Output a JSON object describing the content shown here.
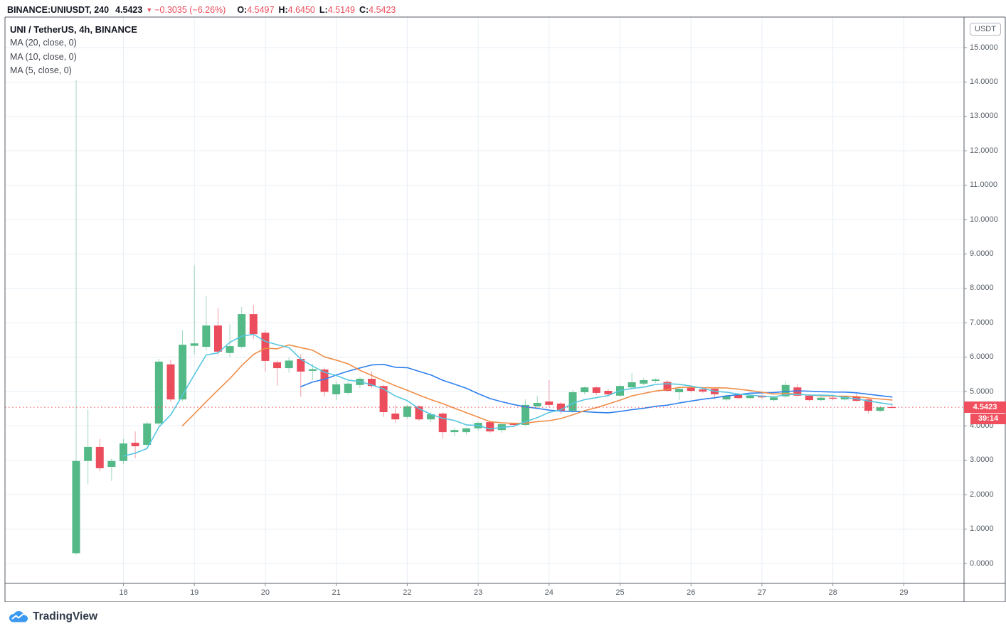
{
  "header": {
    "symbol_title": "BINANCE:UNIUSDT, 240",
    "last_price": "4.5423",
    "direction_icon": "▼",
    "change": "−0.3035 (−6.26%)",
    "ohlc": [
      {
        "label": "O:",
        "value": "4.5497"
      },
      {
        "label": "H:",
        "value": "4.6450"
      },
      {
        "label": "L:",
        "value": "4.5149"
      },
      {
        "label": "C:",
        "value": "4.5423"
      }
    ]
  },
  "legend": {
    "title": "UNI / TetherUS, 4h, BINANCE",
    "indicators": [
      "MA (20, close, 0)",
      "MA (10, close, 0)",
      "MA (5, close, 0)"
    ]
  },
  "price_axis": {
    "unit_label": "USDT",
    "tick_labels": [
      "0.0000",
      "1.0000",
      "2.0000",
      "3.0000",
      "4.0000",
      "5.0000",
      "6.0000",
      "7.0000",
      "8.0000",
      "9.0000",
      "10.0000",
      "11.0000",
      "12.0000",
      "13.0000",
      "14.0000",
      "15.0000"
    ],
    "last_price_label": "4.5423",
    "countdown": "39:14"
  },
  "time_axis": {
    "labels": [
      "18",
      "19",
      "20",
      "21",
      "22",
      "23",
      "24",
      "25",
      "26",
      "27",
      "28",
      "29"
    ]
  },
  "footer": {
    "brand": "TradingView"
  },
  "colors": {
    "up": "#53b987",
    "down": "#eb4d5c",
    "up_wick": "rgba(83,185,135,0.55)",
    "down_wick": "rgba(235,77,92,0.55)",
    "ma20": "#2f80ed",
    "ma10": "#ef8d47",
    "ma5": "#55c6e0",
    "accent_red": "#f04f5e",
    "grid": "#e7eef5",
    "frame": "#565b63"
  },
  "chart_data": {
    "type": "candlestick",
    "title": "UNI / TetherUS, 4h, BINANCE",
    "symbol": "BINANCE:UNIUSDT",
    "interval": "4h",
    "x_axis": {
      "tick_labels": [
        "18",
        "19",
        "20",
        "21",
        "22",
        "23",
        "24",
        "25",
        "26",
        "27",
        "28",
        "29"
      ]
    },
    "y_axis": {
      "min": 0,
      "max": 15,
      "tick_step": 1,
      "tick_labels": [
        "0.0000",
        "1.0000",
        "2.0000",
        "3.0000",
        "4.0000",
        "5.0000",
        "6.0000",
        "7.0000",
        "8.0000",
        "9.0000",
        "10.0000",
        "11.0000",
        "12.0000",
        "13.0000",
        "14.0000",
        "15.0000"
      ]
    },
    "last_price": 4.5423,
    "countdown": "39:14",
    "first_day_label_candle_index": 4,
    "candles_per_day": 6,
    "moving_averages": [
      {
        "label": "MA (20, close, 0)",
        "period": 20,
        "color_key": "ma20"
      },
      {
        "label": "MA (10, close, 0)",
        "period": 10,
        "color_key": "ma10"
      },
      {
        "label": "MA (5, close, 0)",
        "period": 5,
        "color_key": "ma5"
      }
    ],
    "candles": [
      [
        0.3,
        14.05,
        0.25,
        2.98
      ],
      [
        2.98,
        4.48,
        2.31,
        3.39
      ],
      [
        3.39,
        3.62,
        2.68,
        2.77
      ],
      [
        2.81,
        3.05,
        2.4,
        2.98
      ],
      [
        2.98,
        3.62,
        2.9,
        3.49
      ],
      [
        3.51,
        3.84,
        3.06,
        3.41
      ],
      [
        3.45,
        4.12,
        3.35,
        4.07
      ],
      [
        4.07,
        5.95,
        4.0,
        5.87
      ],
      [
        5.79,
        5.92,
        4.7,
        4.77
      ],
      [
        4.77,
        6.78,
        4.72,
        6.36
      ],
      [
        6.33,
        8.67,
        6.08,
        6.4
      ],
      [
        6.3,
        7.77,
        6.2,
        6.92
      ],
      [
        6.92,
        7.44,
        6.05,
        6.16
      ],
      [
        6.12,
        6.95,
        6.0,
        6.32
      ],
      [
        6.3,
        7.46,
        6.25,
        7.25
      ],
      [
        7.25,
        7.52,
        6.53,
        6.67
      ],
      [
        6.71,
        6.78,
        5.58,
        5.89
      ],
      [
        5.85,
        5.9,
        5.17,
        5.68
      ],
      [
        5.68,
        6.0,
        5.55,
        5.9
      ],
      [
        5.95,
        6.09,
        4.85,
        5.58
      ],
      [
        5.6,
        5.81,
        5.33,
        5.65
      ],
      [
        5.64,
        5.7,
        4.85,
        4.99
      ],
      [
        4.92,
        5.3,
        4.75,
        5.21
      ],
      [
        4.96,
        5.3,
        4.9,
        5.23
      ],
      [
        5.19,
        5.42,
        5.1,
        5.37
      ],
      [
        5.37,
        5.58,
        5.1,
        5.16
      ],
      [
        5.16,
        5.2,
        4.26,
        4.4
      ],
      [
        4.36,
        4.6,
        4.09,
        4.19
      ],
      [
        4.26,
        4.62,
        4.2,
        4.57
      ],
      [
        4.57,
        4.6,
        4.15,
        4.19
      ],
      [
        4.19,
        4.4,
        4.1,
        4.34
      ],
      [
        4.36,
        4.4,
        3.64,
        3.82
      ],
      [
        3.82,
        3.95,
        3.7,
        3.88
      ],
      [
        3.82,
        3.95,
        3.75,
        3.93
      ],
      [
        3.93,
        4.12,
        3.85,
        4.09
      ],
      [
        4.11,
        4.15,
        3.8,
        3.84
      ],
      [
        3.88,
        4.08,
        3.8,
        4.05
      ],
      [
        4.06,
        4.1,
        3.95,
        4.03
      ],
      [
        4.03,
        4.77,
        4.0,
        4.61
      ],
      [
        4.57,
        4.88,
        4.5,
        4.67
      ],
      [
        4.71,
        5.33,
        4.55,
        4.61
      ],
      [
        4.65,
        4.7,
        4.35,
        4.44
      ],
      [
        4.44,
        5.05,
        4.38,
        4.98
      ],
      [
        4.98,
        5.15,
        4.92,
        5.12
      ],
      [
        5.12,
        5.16,
        4.9,
        4.96
      ],
      [
        5.02,
        5.08,
        4.85,
        4.92
      ],
      [
        4.88,
        5.2,
        4.85,
        5.16
      ],
      [
        5.12,
        5.54,
        5.08,
        5.27
      ],
      [
        5.23,
        5.4,
        5.18,
        5.33
      ],
      [
        5.31,
        5.38,
        5.25,
        5.35
      ],
      [
        5.28,
        5.33,
        5.0,
        5.02
      ],
      [
        4.98,
        5.12,
        4.75,
        5.08
      ],
      [
        5.12,
        5.18,
        4.98,
        5.02
      ],
      [
        5.06,
        5.1,
        4.95,
        5.0
      ],
      [
        5.08,
        5.1,
        4.77,
        4.92
      ],
      [
        4.77,
        4.92,
        4.72,
        4.88
      ],
      [
        4.9,
        4.95,
        4.78,
        4.81
      ],
      [
        4.81,
        4.9,
        4.78,
        4.88
      ],
      [
        4.88,
        4.92,
        4.78,
        4.83
      ],
      [
        4.75,
        4.87,
        4.72,
        4.83
      ],
      [
        4.86,
        5.29,
        4.82,
        5.19
      ],
      [
        5.12,
        5.22,
        4.85,
        4.88
      ],
      [
        4.88,
        4.92,
        4.7,
        4.75
      ],
      [
        4.75,
        4.85,
        4.72,
        4.82
      ],
      [
        4.82,
        4.86,
        4.75,
        4.79
      ],
      [
        4.77,
        4.88,
        4.74,
        4.86
      ],
      [
        4.86,
        4.94,
        4.7,
        4.73
      ],
      [
        4.77,
        4.8,
        4.36,
        4.44
      ],
      [
        4.44,
        4.58,
        4.4,
        4.54
      ],
      [
        4.5497,
        4.645,
        4.5149,
        4.5423
      ]
    ]
  }
}
